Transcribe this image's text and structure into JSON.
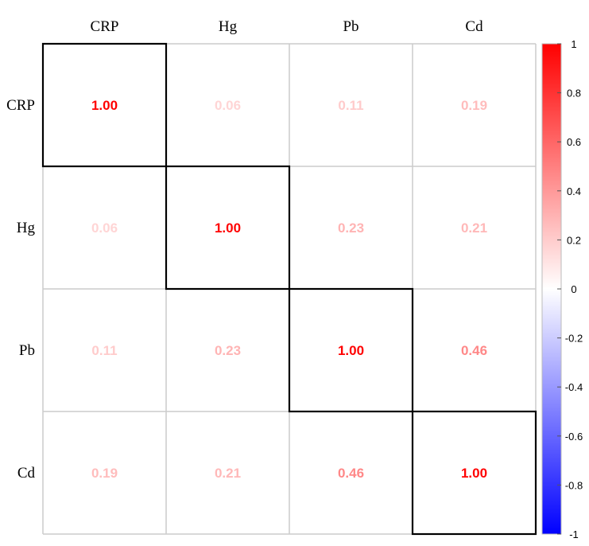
{
  "chart_data": {
    "type": "heatmap",
    "variables": [
      "CRP",
      "Hg",
      "Pb",
      "Cd"
    ],
    "matrix": [
      [
        1.0,
        0.06,
        0.11,
        0.19
      ],
      [
        0.06,
        1.0,
        0.23,
        0.21
      ],
      [
        0.11,
        0.23,
        1.0,
        0.46
      ],
      [
        0.19,
        0.21,
        0.46,
        1.0
      ]
    ],
    "value_labels": [
      [
        "1.00",
        "0.06",
        "0.11",
        "0.19"
      ],
      [
        "0.06",
        "1.00",
        "0.23",
        "0.21"
      ],
      [
        "0.11",
        "0.23",
        "1.00",
        "0.46"
      ],
      [
        "0.19",
        "0.21",
        "0.46",
        "1.00"
      ]
    ],
    "colorbar": {
      "range": [
        -1,
        1
      ],
      "ticks": [
        "1",
        "0.8",
        "0.6",
        "0.4",
        "0.2",
        "0",
        "-0.2",
        "-0.4",
        "-0.6",
        "-0.8",
        "-1"
      ],
      "colors": {
        "low": "#0000ff",
        "mid": "#ffffff",
        "high": "#ff0000"
      }
    },
    "grid": true,
    "legend": "right",
    "highlight": "diagonal"
  }
}
